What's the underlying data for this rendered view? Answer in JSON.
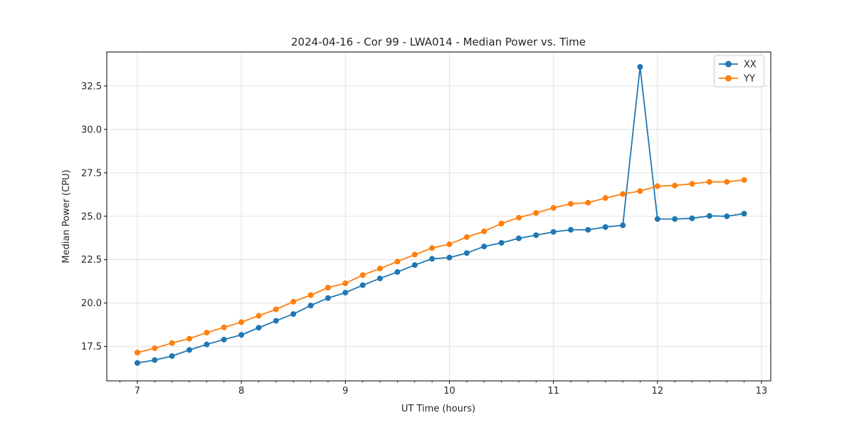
{
  "chart_data": {
    "type": "line",
    "title": "2024-04-16 - Cor 99 - LWA014 - Median Power vs. Time",
    "xlabel": "UT Time (hours)",
    "ylabel": "Median Power (CPU)",
    "xlim": [
      6.706,
      13.089
    ],
    "ylim": [
      15.52,
      34.46
    ],
    "xticks": [
      7,
      8,
      9,
      10,
      11,
      12,
      13
    ],
    "yticks": [
      17.5,
      20.0,
      22.5,
      25.0,
      27.5,
      30.0,
      32.5
    ],
    "x_minor_step_hours": 0.1667,
    "grid": true,
    "legend_position": "upper right",
    "marker": "circle",
    "x": [
      7.0,
      7.167,
      7.333,
      7.5,
      7.667,
      7.833,
      8.0,
      8.167,
      8.333,
      8.5,
      8.667,
      8.833,
      9.0,
      9.167,
      9.333,
      9.5,
      9.667,
      9.833,
      10.0,
      10.167,
      10.333,
      10.5,
      10.667,
      10.833,
      11.0,
      11.167,
      11.333,
      11.5,
      11.667,
      11.833,
      12.0,
      12.167,
      12.333,
      12.5,
      12.667,
      12.833
    ],
    "series": [
      {
        "name": "XX",
        "color": "#1f77b4",
        "values": [
          16.55,
          16.72,
          16.95,
          17.3,
          17.62,
          17.9,
          18.17,
          18.58,
          18.98,
          19.37,
          19.86,
          20.29,
          20.6,
          21.03,
          21.42,
          21.79,
          22.19,
          22.55,
          22.62,
          22.88,
          23.26,
          23.47,
          23.73,
          23.91,
          24.1,
          24.22,
          24.22,
          24.38,
          24.48,
          33.6,
          24.84,
          24.84,
          24.88,
          25.02,
          25.0,
          25.15
        ]
      },
      {
        "name": "YY",
        "color": "#ff7f0e",
        "values": [
          17.15,
          17.4,
          17.7,
          17.95,
          18.3,
          18.6,
          18.9,
          19.27,
          19.64,
          20.08,
          20.46,
          20.89,
          21.14,
          21.61,
          21.99,
          22.39,
          22.79,
          23.17,
          23.39,
          23.8,
          24.13,
          24.58,
          24.92,
          25.19,
          25.48,
          25.72,
          25.78,
          26.05,
          26.28,
          26.45,
          26.73,
          26.77,
          26.87,
          26.98,
          26.98,
          27.09
        ]
      }
    ],
    "colors": {
      "grid": "#e1e1e1",
      "spine": "#000000",
      "text": "#262626",
      "background": "#ffffff"
    }
  }
}
